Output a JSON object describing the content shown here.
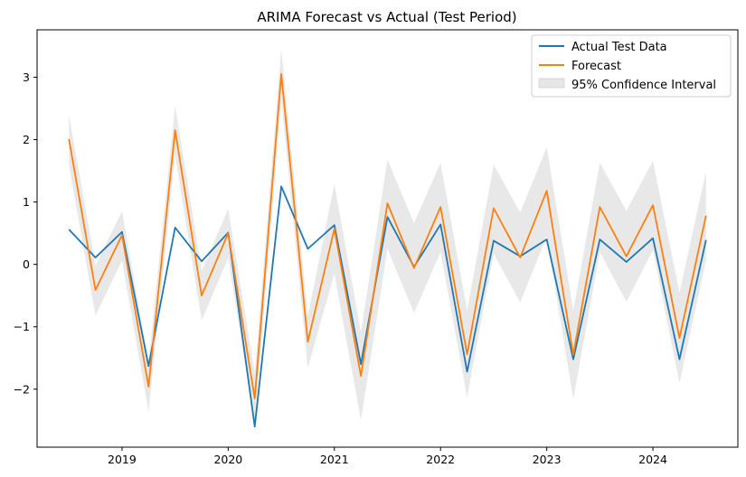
{
  "chart_data": {
    "type": "line",
    "title": "ARIMA Forecast vs Actual (Test Period)",
    "xlabel": "",
    "ylabel": "",
    "x": [
      "2018-07",
      "2018-10",
      "2019-01",
      "2019-04",
      "2019-07",
      "2019-10",
      "2020-01",
      "2020-04",
      "2020-07",
      "2020-10",
      "2021-01",
      "2021-04",
      "2021-07",
      "2021-10",
      "2022-01",
      "2022-04",
      "2022-07",
      "2022-10",
      "2023-01",
      "2023-04",
      "2023-07",
      "2023-10",
      "2024-01",
      "2024-04",
      "2024-07"
    ],
    "x_ticks": [
      "2019",
      "2020",
      "2021",
      "2022",
      "2023",
      "2024"
    ],
    "y_ticks": [
      -2,
      -1,
      0,
      1,
      2,
      3
    ],
    "ylim": [
      -2.93,
      3.76
    ],
    "grid": false,
    "legend_position": "top-right",
    "series": [
      {
        "name": "Actual Test Data",
        "color": "#1f77b4",
        "values": [
          0.56,
          0.11,
          0.52,
          -1.63,
          0.59,
          0.05,
          0.51,
          -2.6,
          1.25,
          0.25,
          0.63,
          -1.6,
          0.76,
          -0.04,
          0.64,
          -1.72,
          0.38,
          0.13,
          0.4,
          -1.52,
          0.4,
          0.04,
          0.42,
          -1.52,
          0.39
        ]
      },
      {
        "name": "Forecast",
        "color": "#ff7f0e",
        "values": [
          2.01,
          -0.41,
          0.47,
          -1.96,
          2.15,
          -0.5,
          0.5,
          -2.15,
          3.05,
          -1.24,
          0.57,
          -1.79,
          0.98,
          -0.06,
          0.92,
          -1.44,
          0.9,
          0.11,
          1.18,
          -1.45,
          0.92,
          0.13,
          0.95,
          -1.18,
          0.78
        ]
      }
    ],
    "interval": {
      "name": "95% Confidence Interval",
      "color": "#e6e6e6",
      "lower": [
        1.6,
        -0.82,
        0.06,
        -2.36,
        1.75,
        -0.9,
        0.1,
        -2.55,
        2.64,
        -1.66,
        -0.15,
        -2.5,
        0.25,
        -0.78,
        0.2,
        -2.13,
        0.17,
        -0.61,
        0.45,
        -2.16,
        0.2,
        -0.6,
        0.23,
        -1.9,
        0.06
      ],
      "upper": [
        2.4,
        -0.01,
        0.85,
        -1.56,
        2.54,
        -0.1,
        0.89,
        -1.75,
        3.46,
        -0.83,
        1.29,
        -1.09,
        1.68,
        0.66,
        1.63,
        -0.74,
        1.6,
        0.83,
        1.88,
        -0.74,
        1.63,
        0.86,
        1.66,
        -0.45,
        1.49
      ]
    }
  }
}
